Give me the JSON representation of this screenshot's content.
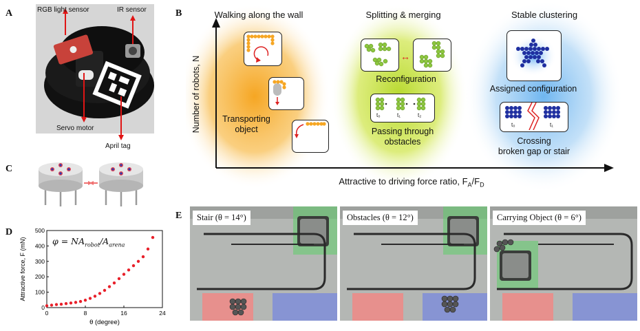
{
  "panel_letters": {
    "a": "A",
    "b": "B",
    "c": "C",
    "d": "D",
    "e": "E"
  },
  "panel_a": {
    "label_rgb": "RGB light sensor",
    "label_ir": "IR sensor",
    "label_servo": "Servo motor",
    "label_april": "April tag"
  },
  "panel_b": {
    "heading_1": "Walking along the wall",
    "heading_2": "Splitting & merging",
    "heading_3": "Stable clustering",
    "y_axis_label": "Number of robots, N",
    "x_axis_label": "Attractive to driving force ratio, F",
    "x_axis_sub_a": "A",
    "x_axis_slash": "/F",
    "x_axis_sub_d": "D",
    "transport_line1": "Transporting",
    "transport_line2": "object",
    "reconfiguration": "Reconfiguration",
    "passing_line1": "Passing through",
    "passing_line2": "obstacles",
    "assigned": "Assigned configuration",
    "crossing_line1": "Crossing",
    "crossing_line2": "broken gap or stair",
    "t0": "t₀",
    "t1": "t₁",
    "t2": "t₂",
    "colors": {
      "orange": "#f6a623",
      "green": "#9acd32",
      "blue": "#2a3cb0"
    }
  },
  "panel_d": {
    "equation": "φ = NA",
    "eq_sub1": "robot",
    "eq_mid": "/A",
    "eq_sub2": "arena"
  },
  "chart_data": {
    "type": "scatter",
    "xlabel": "θ (degree)",
    "ylabel": "Attractive force, F (mN)",
    "xlim": [
      0,
      24
    ],
    "ylim": [
      0,
      500
    ],
    "xticks": [
      0,
      8,
      16,
      24
    ],
    "yticks": [
      0,
      100,
      200,
      300,
      400,
      500
    ],
    "x": [
      0,
      1,
      2,
      3,
      4,
      5,
      6,
      7,
      8,
      9,
      10,
      11,
      12,
      13,
      14,
      15,
      16,
      17,
      18,
      19,
      20,
      21,
      22
    ],
    "y": [
      12,
      16,
      20,
      22,
      26,
      30,
      34,
      40,
      48,
      60,
      74,
      92,
      112,
      136,
      160,
      188,
      216,
      244,
      272,
      300,
      330,
      380,
      455
    ],
    "color": "#e8202a"
  },
  "panel_e": {
    "label_1": "Stair (θ = 14°)",
    "label_2": "Obstacles (θ = 12°)",
    "label_3": "Carrying Object (θ = 6°)"
  }
}
